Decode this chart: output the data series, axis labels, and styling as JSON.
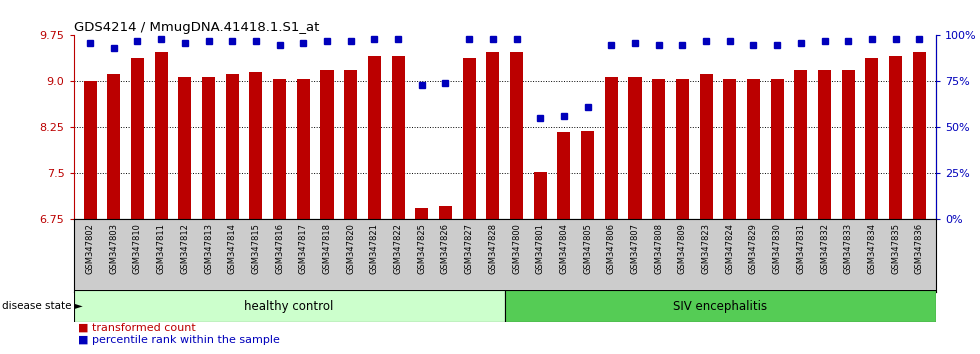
{
  "title": "GDS4214 / MmugDNA.41418.1.S1_at",
  "samples": [
    "GSM347802",
    "GSM347803",
    "GSM347810",
    "GSM347811",
    "GSM347812",
    "GSM347813",
    "GSM347814",
    "GSM347815",
    "GSM347816",
    "GSM347817",
    "GSM347818",
    "GSM347820",
    "GSM347821",
    "GSM347822",
    "GSM347825",
    "GSM347826",
    "GSM347827",
    "GSM347828",
    "GSM347800",
    "GSM347801",
    "GSM347804",
    "GSM347805",
    "GSM347806",
    "GSM347807",
    "GSM347808",
    "GSM347809",
    "GSM347823",
    "GSM347824",
    "GSM347829",
    "GSM347830",
    "GSM347831",
    "GSM347832",
    "GSM347833",
    "GSM347834",
    "GSM347835",
    "GSM347836"
  ],
  "bar_values": [
    9.0,
    9.12,
    9.38,
    9.48,
    9.08,
    9.08,
    9.12,
    9.16,
    9.04,
    9.04,
    9.18,
    9.18,
    9.42,
    9.42,
    6.93,
    6.97,
    9.38,
    9.48,
    9.48,
    7.52,
    8.18,
    8.19,
    9.08,
    9.08,
    9.04,
    9.04,
    9.12,
    9.04,
    9.04,
    9.04,
    9.18,
    9.18,
    9.18,
    9.38,
    9.42,
    9.48
  ],
  "percentile_values": [
    96,
    93,
    97,
    98,
    96,
    97,
    97,
    97,
    95,
    96,
    97,
    97,
    98,
    98,
    73,
    74,
    98,
    98,
    98,
    55,
    56,
    61,
    95,
    96,
    95,
    95,
    97,
    97,
    95,
    95,
    96,
    97,
    97,
    98,
    98,
    98
  ],
  "healthy_count": 18,
  "bar_color": "#BB0000",
  "percentile_color": "#0000BB",
  "ylim_left": [
    6.75,
    9.75
  ],
  "ylim_right": [
    0,
    100
  ],
  "yticks_left": [
    6.75,
    7.5,
    8.25,
    9.0,
    9.75
  ],
  "yticks_right": [
    0,
    25,
    50,
    75,
    100
  ],
  "grid_values": [
    7.5,
    8.25,
    9.0
  ],
  "healthy_label": "healthy control",
  "siv_label": "SIV encephalitis",
  "disease_state_label": "disease state",
  "legend_bar_label": "transformed count",
  "legend_pct_label": "percentile rank within the sample",
  "healthy_bg": "#CCFFCC",
  "siv_bg": "#55CC55",
  "tick_area_bg": "#CCCCCC",
  "bg_color": "#FFFFFF"
}
